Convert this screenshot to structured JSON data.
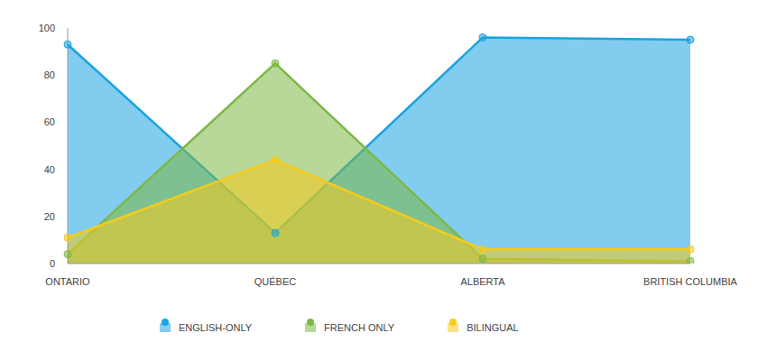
{
  "chart_data": {
    "type": "area",
    "categories": [
      "ONTARIO",
      "QUÉBEC",
      "ALBERTA",
      "BRITISH COLUMBIA"
    ],
    "series": [
      {
        "name": "ENGLISH-ONLY",
        "color": "#1ba3e2",
        "values": [
          93,
          13,
          96,
          95
        ]
      },
      {
        "name": "FRENCH ONLY",
        "color": "#7cb844",
        "values": [
          4,
          85,
          2,
          1
        ]
      },
      {
        "name": "BILINGUAL",
        "color": "#f6cb1c",
        "values": [
          11,
          44,
          6,
          6
        ]
      }
    ],
    "ylim": [
      0,
      100
    ],
    "yticks": [
      0,
      20,
      40,
      60,
      80,
      100
    ],
    "grid": false,
    "legend": "bottom",
    "marker": "circle"
  }
}
